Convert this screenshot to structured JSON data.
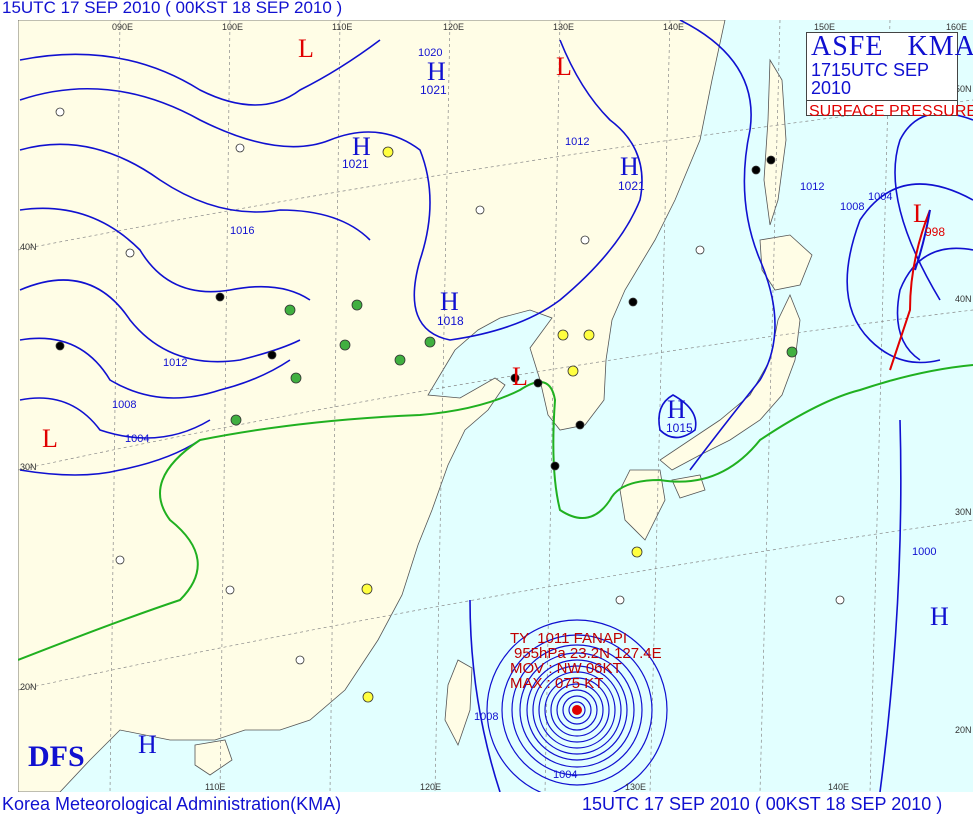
{
  "header": {
    "title": "15UTC 17 SEP 2010 ( 00KST 18 SEP 2010 )"
  },
  "footer": {
    "agency": "Korea Meteorological Administration(KMA)",
    "valid_time": "15UTC 17 SEP 2010 ( 00KST 18 SEP 2010 )"
  },
  "legend": {
    "product": "ASFE   KMA",
    "issued": "1715UTC SEP 2010",
    "type": "SURFACE  PRESSURE(hPa)"
  },
  "logo": "DFS",
  "typhoon": {
    "name": "TY  1011 FANAPI",
    "position": "955hPa 23.2N 127.4E",
    "movement": "MOV : NW 06KT",
    "max_wind": "MAX : 075 KT"
  },
  "grid": {
    "top_lon": [
      "090E",
      "100E",
      "110E",
      "120E",
      "130E",
      "140E",
      "150E",
      "160E"
    ],
    "bottom_lon": [
      "110E",
      "120E",
      "130E",
      "140E"
    ],
    "left_lat": [
      "40N",
      "30N",
      "20N"
    ],
    "right_lat": [
      "50N",
      "40N",
      "30N",
      "20N"
    ]
  },
  "pressure_centers": [
    {
      "type": "L",
      "value": ""
    },
    {
      "type": "H",
      "value": "1021"
    },
    {
      "type": "H",
      "value": "1021"
    },
    {
      "type": "L",
      "value": ""
    },
    {
      "type": "H",
      "value": "1021"
    },
    {
      "type": "H",
      "value": "1018"
    },
    {
      "type": "L",
      "value": ""
    },
    {
      "type": "H",
      "value": "1015"
    },
    {
      "type": "L",
      "value": ""
    },
    {
      "type": "H",
      "value": ""
    },
    {
      "type": "H",
      "value": ""
    },
    {
      "type": "L",
      "value": "998"
    }
  ],
  "isobar_labels": [
    "1020",
    "1016",
    "1012",
    "1008",
    "1004",
    "1012",
    "1012",
    "1008",
    "1004",
    "1008",
    "1004",
    "1000"
  ],
  "colors": {
    "land": "#fffde6",
    "sea": "#e2ffff",
    "isobar": "#1010d0",
    "front_stationary": "#20b020",
    "front_warm": "#e00000",
    "front_cold": "#1010d0",
    "high": "#1010d0",
    "low": "#e00000",
    "grid": "#808080"
  }
}
